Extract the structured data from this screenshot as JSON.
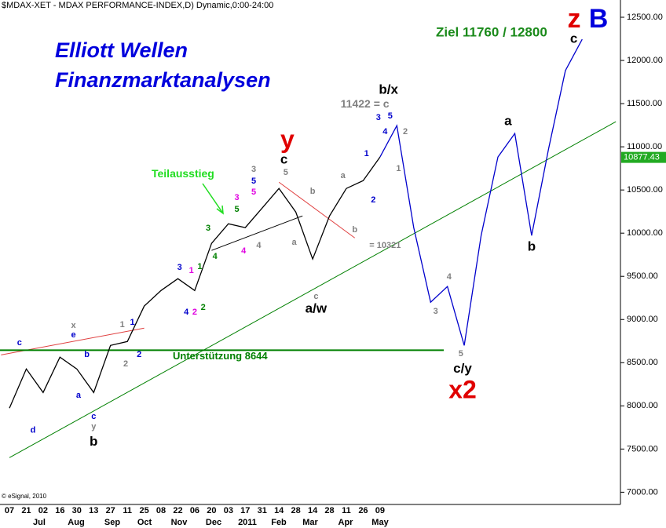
{
  "chart_data": {
    "type": "line",
    "title": "$MDAX-XET - MDAX PERFORMANCE-INDEX,D) Dynamic,0:00-24:00",
    "headline": [
      "Elliott Wellen",
      "Finanzmarktanalysen"
    ],
    "target": "Ziel 11760 / 12800",
    "corner_labels": [
      {
        "text": "z",
        "color": "#e00000"
      },
      {
        "text": "B",
        "color": "#0000dd"
      }
    ],
    "copyright": "© eSignal, 2010",
    "categories": [
      "07",
      "21",
      "02",
      "16",
      "30",
      "13",
      "27",
      "11",
      "25",
      "08",
      "22",
      "06",
      "20",
      "03",
      "17",
      "31",
      "14",
      "28",
      "14",
      "28",
      "11",
      "26",
      "09",
      null,
      null,
      null,
      null,
      null,
      null,
      null,
      null,
      null,
      null,
      null,
      null,
      null,
      null
    ],
    "months": [
      "Jul",
      "Aug",
      "Sep",
      "Oct",
      "Nov",
      "Dec",
      "2011",
      "Feb",
      "Mar",
      "Apr",
      "May"
    ],
    "series": [
      {
        "color": "#000000",
        "values": [
          7973,
          8427,
          8155,
          8564,
          8427,
          8155,
          8700,
          8745,
          9155,
          9336,
          9473,
          9336,
          9882,
          10109,
          10064,
          10291,
          10518,
          10245,
          9700,
          10200,
          10518,
          10609,
          10882,
          null,
          null,
          null,
          null,
          null,
          null,
          null,
          null,
          null,
          null,
          null,
          null,
          null,
          null
        ]
      },
      {
        "color": "#0000cc",
        "values": [
          null,
          null,
          null,
          null,
          null,
          null,
          null,
          null,
          null,
          null,
          null,
          null,
          null,
          null,
          null,
          null,
          null,
          null,
          null,
          null,
          null,
          null,
          10882,
          11245,
          10064,
          9200,
          9382,
          8700,
          9973,
          10882,
          11155,
          9973,
          10973,
          11882,
          12245,
          null,
          null
        ]
      }
    ],
    "trendlines": [
      {
        "color": "#008000",
        "x": [
          0,
          36
        ],
        "values": [
          7400,
          11291
        ]
      },
      {
        "color": "#e04040",
        "x": [
          -0.5,
          8
        ],
        "values": [
          8590,
          8900
        ]
      },
      {
        "color": "#000000",
        "x": [
          12,
          17.4
        ],
        "values": [
          9800,
          10200
        ]
      },
      {
        "color": "#e04040",
        "x": [
          16,
          20.5
        ],
        "values": [
          10590,
          9945
        ]
      }
    ],
    "support": {
      "value": 8644,
      "label": "Unterstützung 8644",
      "color": "#008000"
    },
    "last": 10877.43,
    "last_color": "#22aa22",
    "ylim": [
      6840,
      12700
    ],
    "yticks": [
      {
        "value": 7000,
        "label": "7000.00"
      },
      {
        "value": 7500,
        "label": "7500.00"
      },
      {
        "value": 8000,
        "label": "8000.00"
      },
      {
        "value": 8500,
        "label": "8500.00"
      },
      {
        "value": 9000,
        "label": "9000.00"
      },
      {
        "value": 9500,
        "label": "9500.00"
      },
      {
        "value": 10000,
        "label": "10000.00"
      },
      {
        "value": 10500,
        "label": "10500.00"
      },
      {
        "value": 11000,
        "label": "11000.00"
      },
      {
        "value": 11500,
        "label": "11500.00"
      },
      {
        "value": 12000,
        "label": "12000.00"
      },
      {
        "value": 12500,
        "label": "12500.00"
      }
    ],
    "annotations": [
      {
        "text": "b/x",
        "color": "#000000",
        "x": 22.5,
        "y": 11655,
        "size": "large"
      },
      {
        "text": "11422 = c",
        "color": "#808080",
        "x": 21.1,
        "y": 11491,
        "size": "medium"
      },
      {
        "text": "3",
        "color": "#0000cc",
        "x": 21.9,
        "y": 11336,
        "size": "small"
      },
      {
        "text": "5",
        "color": "#0000cc",
        "x": 22.6,
        "y": 11355,
        "size": "small"
      },
      {
        "text": "4",
        "color": "#0000cc",
        "x": 22.3,
        "y": 11173,
        "size": "small"
      },
      {
        "text": "2",
        "color": "#808080",
        "x": 23.5,
        "y": 11173,
        "size": "small"
      },
      {
        "text": "1",
        "color": "#808080",
        "x": 23.1,
        "y": 10745,
        "size": "small"
      },
      {
        "text": "1",
        "color": "#0000cc",
        "x": 21.2,
        "y": 10918,
        "size": "small"
      },
      {
        "text": "2",
        "color": "#0000cc",
        "x": 21.6,
        "y": 10382,
        "size": "small"
      },
      {
        "text": "y",
        "color": "#e00000",
        "x": 16.5,
        "y": 11064,
        "size": "huge"
      },
      {
        "text": "c",
        "color": "#000000",
        "x": 16.3,
        "y": 10846,
        "size": "large"
      },
      {
        "text": "5",
        "color": "#808080",
        "x": 16.4,
        "y": 10700,
        "size": "small"
      },
      {
        "text": "a",
        "color": "#808080",
        "x": 19.8,
        "y": 10664,
        "size": "small"
      },
      {
        "text": "b",
        "color": "#808080",
        "x": 18.0,
        "y": 10482,
        "size": "small"
      },
      {
        "text": "b",
        "color": "#808080",
        "x": 20.5,
        "y": 10036,
        "size": "small"
      },
      {
        "text": "a",
        "color": "#808080",
        "x": 16.9,
        "y": 9891,
        "size": "small"
      },
      {
        "text": "3",
        "color": "#808080",
        "x": 14.5,
        "y": 10736,
        "size": "small"
      },
      {
        "text": "5",
        "color": "#0000cc",
        "x": 14.5,
        "y": 10600,
        "size": "small"
      },
      {
        "text": "5",
        "color": "#e000e0",
        "x": 14.5,
        "y": 10473,
        "size": "small"
      },
      {
        "text": "3",
        "color": "#e000e0",
        "x": 13.5,
        "y": 10409,
        "size": "small"
      },
      {
        "text": "5",
        "color": "#008000",
        "x": 13.5,
        "y": 10273,
        "size": "small"
      },
      {
        "text": "Teilausstieg",
        "color": "#22dd22",
        "x": 10.3,
        "y": 10682,
        "size": "medium"
      },
      {
        "text": "4",
        "color": "#e000e0",
        "x": 13.9,
        "y": 9791,
        "size": "small"
      },
      {
        "text": "4",
        "color": "#808080",
        "x": 14.8,
        "y": 9855,
        "size": "small"
      },
      {
        "text": "3",
        "color": "#008000",
        "x": 11.8,
        "y": 10055,
        "size": "small"
      },
      {
        "text": "4",
        "color": "#008000",
        "x": 12.2,
        "y": 9727,
        "size": "small"
      },
      {
        "text": "1",
        "color": "#008000",
        "x": 11.3,
        "y": 9609,
        "size": "small"
      },
      {
        "text": "2",
        "color": "#008000",
        "x": 11.5,
        "y": 9136,
        "size": "small"
      },
      {
        "text": "1",
        "color": "#e000e0",
        "x": 10.8,
        "y": 9564,
        "size": "small"
      },
      {
        "text": "3",
        "color": "#0000cc",
        "x": 10.1,
        "y": 9600,
        "size": "small"
      },
      {
        "text": "4",
        "color": "#0000cc",
        "x": 10.5,
        "y": 9082,
        "size": "small"
      },
      {
        "text": "2",
        "color": "#e000e0",
        "x": 11.0,
        "y": 9082,
        "size": "small"
      },
      {
        "text": "= 10321",
        "color": "#808080",
        "x": 22.3,
        "y": 9855,
        "size": "tiny"
      },
      {
        "text": "c",
        "color": "#808080",
        "x": 18.2,
        "y": 9264,
        "size": "small"
      },
      {
        "text": "a/w",
        "color": "#000000",
        "x": 18.2,
        "y": 9118,
        "size": "large"
      },
      {
        "text": "1",
        "color": "#808080",
        "x": 6.7,
        "y": 8936,
        "size": "small"
      },
      {
        "text": "1",
        "color": "#0000cc",
        "x": 7.3,
        "y": 8964,
        "size": "small"
      },
      {
        "text": "2",
        "color": "#808080",
        "x": 6.9,
        "y": 8482,
        "size": "small"
      },
      {
        "text": "2",
        "color": "#0000cc",
        "x": 7.7,
        "y": 8591,
        "size": "small"
      },
      {
        "text": "x",
        "color": "#808080",
        "x": 3.8,
        "y": 8927,
        "size": "small"
      },
      {
        "text": "e",
        "color": "#0000cc",
        "x": 3.8,
        "y": 8818,
        "size": "small"
      },
      {
        "text": "c",
        "color": "#0000cc",
        "x": 0.6,
        "y": 8727,
        "size": "small"
      },
      {
        "text": "b",
        "color": "#0000cc",
        "x": 4.6,
        "y": 8591,
        "size": "small"
      },
      {
        "text": "a",
        "color": "#0000cc",
        "x": 4.1,
        "y": 8118,
        "size": "small"
      },
      {
        "text": "d",
        "color": "#0000cc",
        "x": 1.4,
        "y": 7718,
        "size": "small"
      },
      {
        "text": "c",
        "color": "#0000cc",
        "x": 5.0,
        "y": 7873,
        "size": "small"
      },
      {
        "text": "y",
        "color": "#808080",
        "x": 5.0,
        "y": 7755,
        "size": "small"
      },
      {
        "text": "b",
        "color": "#000000",
        "x": 5.0,
        "y": 7582,
        "size": "large"
      },
      {
        "text": "3",
        "color": "#808080",
        "x": 25.3,
        "y": 9091,
        "size": "small"
      },
      {
        "text": "4",
        "color": "#808080",
        "x": 26.1,
        "y": 9491,
        "size": "small"
      },
      {
        "text": "5",
        "color": "#808080",
        "x": 26.8,
        "y": 8600,
        "size": "small"
      },
      {
        "text": "c/y",
        "color": "#000000",
        "x": 26.9,
        "y": 8427,
        "size": "large"
      },
      {
        "text": "x2",
        "color": "#e00000",
        "x": 26.9,
        "y": 8164,
        "size": "huge"
      },
      {
        "text": "a",
        "color": "#000000",
        "x": 29.6,
        "y": 11291,
        "size": "large"
      },
      {
        "text": "b",
        "color": "#000000",
        "x": 31.0,
        "y": 9836,
        "size": "large"
      },
      {
        "text": "c",
        "color": "#000000",
        "x": 33.5,
        "y": 12245,
        "size": "large"
      }
    ]
  }
}
